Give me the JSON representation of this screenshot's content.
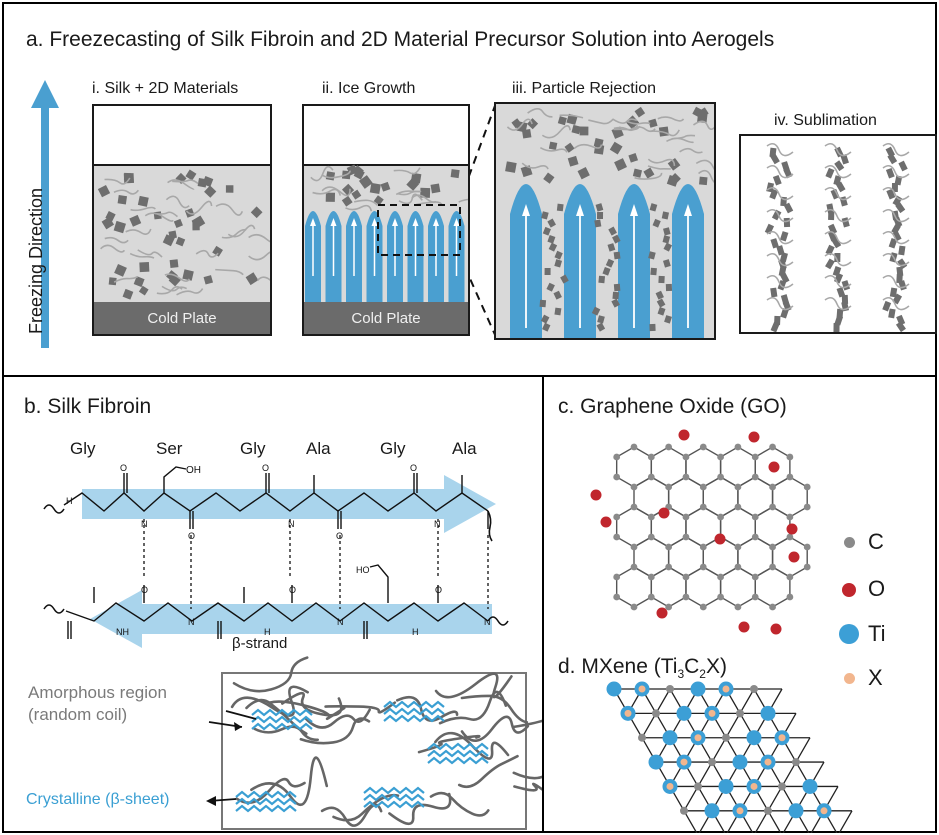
{
  "panel_a": {
    "title": "a. Freezecasting of Silk Fibroin and 2D Material Precursor Solution into Aerogels",
    "freezing_direction": "Freezing Direction",
    "steps": [
      {
        "label": "i. Silk + 2D Materials"
      },
      {
        "label": "ii. Ice Growth"
      },
      {
        "label": "iii. Particle Rejection"
      },
      {
        "label": "iv. Sublimation"
      }
    ],
    "cold_plate": "Cold Plate",
    "colors": {
      "ice": "#4a9fd0",
      "solution": "#d9d9d9",
      "plate": "#6b6b6b",
      "particle": "#6e6e6e"
    }
  },
  "panel_b": {
    "title": "b. Silk Fibroin",
    "residues": [
      "Gly",
      "Ser",
      "Gly",
      "Ala",
      "Gly",
      "Ala"
    ],
    "oh": "OH",
    "strand_label": "β-strand",
    "atom_o": "O",
    "atom_n": "N",
    "atom_nh": "H",
    "amorphous_label_1": "Amorphous region",
    "amorphous_label_2": "(random coil)",
    "crystalline_label": "Crystalline (β-sheet)",
    "colors": {
      "strand": "#a9d4ec",
      "crystalline": "#3a9fd3",
      "amorphous": "#666666"
    }
  },
  "panel_c": {
    "title": "c. Graphene Oxide (GO)"
  },
  "panel_d": {
    "title_prefix": "d. MXene (Ti",
    "sub1": "3",
    "mid": "C",
    "sub2": "2",
    "suffix": "X)"
  },
  "legend": [
    {
      "symbol": "C",
      "color": "#8a8a8a"
    },
    {
      "symbol": "O",
      "color": "#c0262d"
    },
    {
      "symbol": "Ti",
      "color": "#3c9fd6"
    },
    {
      "symbol": "X",
      "color": "#f2b68e"
    }
  ]
}
